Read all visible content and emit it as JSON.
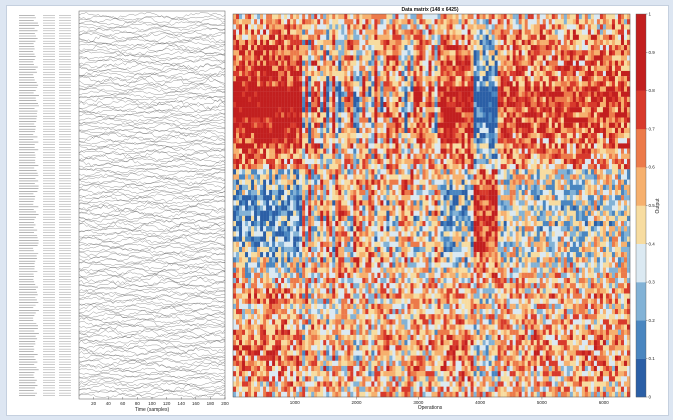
{
  "chart_data": [
    {
      "type": "line",
      "xlabel": "Time (samples)",
      "ylabel": "",
      "xlim": [
        0,
        200
      ],
      "x_ticks": [
        "20",
        "40",
        "60",
        "80",
        "100",
        "120",
        "140",
        "160",
        "180",
        "200"
      ],
      "n_series": 148
    },
    {
      "type": "heatmap",
      "title": "Data matrix (148 x 6425)",
      "xlabel": "Operations",
      "ylabel": "",
      "n_rows": 148,
      "n_cols": 6425,
      "x_ticks": [
        "1000",
        "2000",
        "3000",
        "4000",
        "5000",
        "6000"
      ],
      "xlim": [
        1,
        6425
      ],
      "colorbar": {
        "label": "Output",
        "range": [
          0,
          1
        ],
        "ticks": [
          "0",
          "0.1",
          "0.2",
          "0.3",
          "0.4",
          "0.5",
          "0.6",
          "0.7",
          "0.8",
          "0.9",
          "1"
        ],
        "colors": [
          "#2b5fa6",
          "#4a86c0",
          "#82b2d6",
          "#dbe9f2",
          "#f7dca0",
          "#f6b06e",
          "#ec7a4a",
          "#d83a2c",
          "#c21f1f",
          "#c21f1f"
        ]
      }
    }
  ]
}
